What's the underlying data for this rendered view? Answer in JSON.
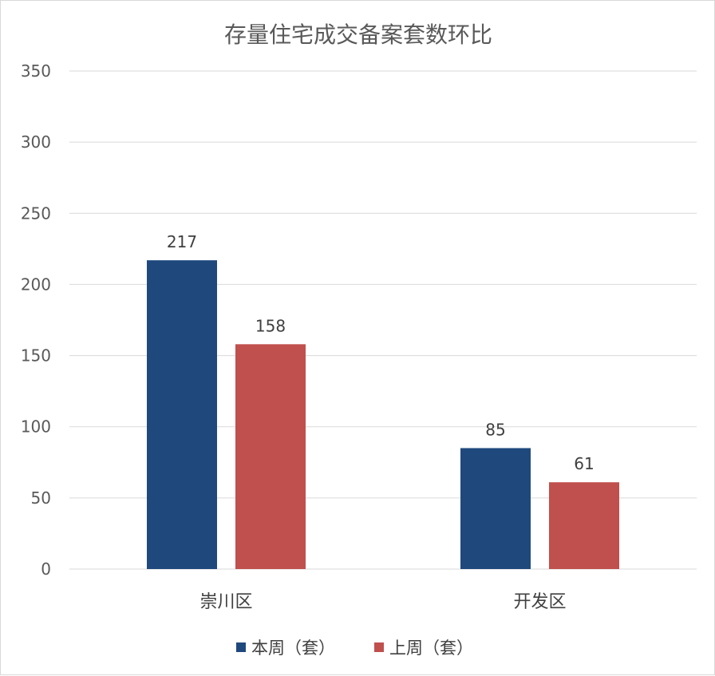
{
  "chart_data": {
    "type": "bar",
    "title": "存量住宅成交备案套数环比",
    "categories": [
      "崇川区",
      "开发区"
    ],
    "series": [
      {
        "name": "本周（套）",
        "values": [
          217,
          85
        ],
        "color": "#1F497D"
      },
      {
        "name": "上周（套）",
        "values": [
          158,
          61
        ],
        "color": "#C0504D"
      }
    ],
    "ylim": [
      0,
      350
    ],
    "yticks": [
      0,
      50,
      100,
      150,
      200,
      250,
      300,
      350
    ],
    "grid": true,
    "legend": "bottom",
    "data_labels": true
  }
}
